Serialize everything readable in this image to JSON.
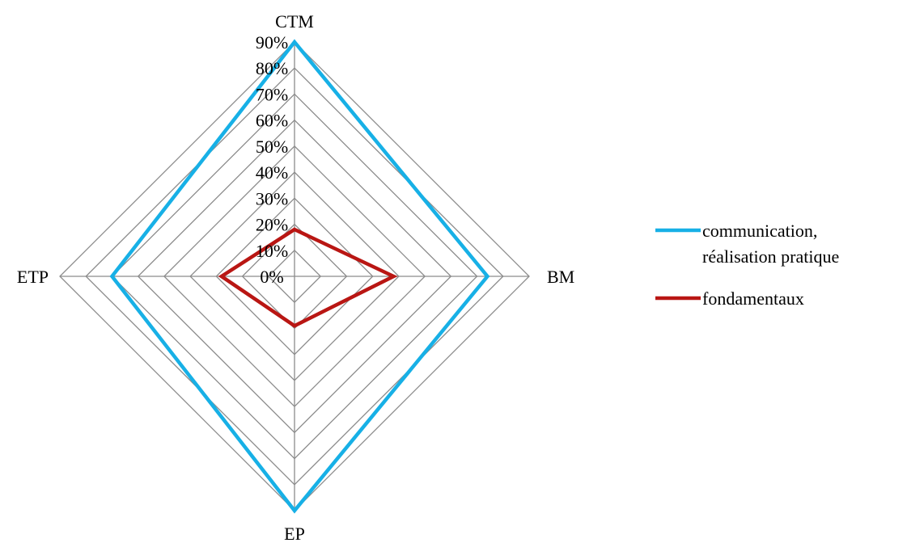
{
  "chart_data": {
    "type": "radar",
    "categories": [
      "CTM",
      "BM",
      "EP",
      "ETP"
    ],
    "series": [
      {
        "name": "communication, réalisation pratique",
        "legend_lines": [
          "communication,",
          "réalisation pratique"
        ],
        "values": [
          90,
          74,
          90,
          70
        ],
        "color": "#17b0e6"
      },
      {
        "name": "fondamentaux",
        "legend_lines": [
          "fondamentaux"
        ],
        "values": [
          18,
          38,
          19,
          28
        ],
        "color": "#b91613"
      }
    ],
    "radial_ticks": [
      "0%",
      "10%",
      "20%",
      "30%",
      "40%",
      "50%",
      "60%",
      "70%",
      "80%",
      "90%"
    ],
    "rmin": 0,
    "rmax": 90,
    "tick_step": 10,
    "grid_count": 9,
    "grid": true,
    "legend_position": "right",
    "grid_color": "#8c8c8c"
  }
}
